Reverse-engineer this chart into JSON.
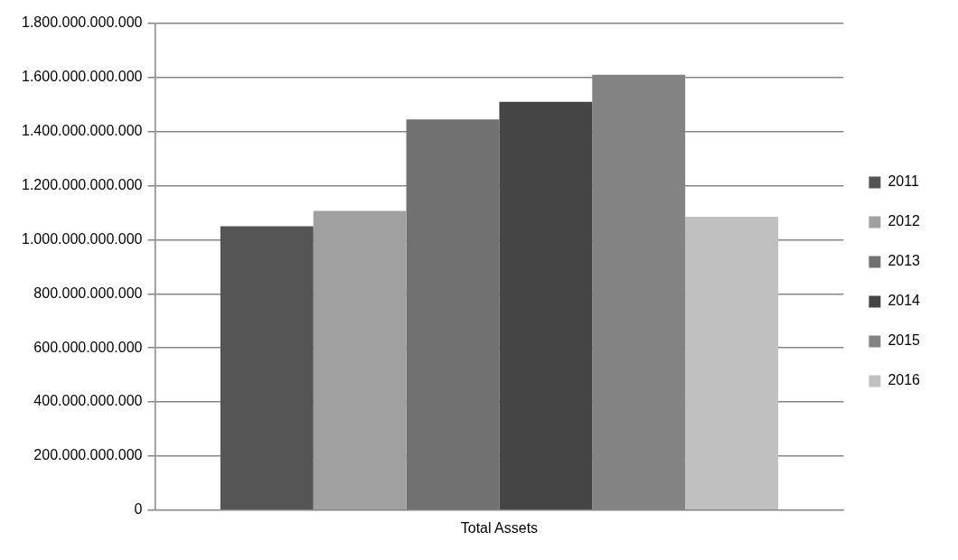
{
  "chart_data": {
    "type": "bar",
    "categories": [
      "Total Assets"
    ],
    "series": [
      {
        "name": "2011",
        "color": "#555555",
        "values": [
          1050000000000
        ]
      },
      {
        "name": "2012",
        "color": "#a0a0a0",
        "values": [
          1107000000000
        ]
      },
      {
        "name": "2013",
        "color": "#717171",
        "values": [
          1445000000000
        ]
      },
      {
        "name": "2014",
        "color": "#454545",
        "values": [
          1510000000000
        ]
      },
      {
        "name": "2015",
        "color": "#838383",
        "values": [
          1610000000000
        ]
      },
      {
        "name": "2016",
        "color": "#c0c0c0",
        "values": [
          1085000000000
        ]
      }
    ],
    "ylim": [
      0,
      1800000000000
    ],
    "yticks": [
      0,
      {
        "value": 200000000000,
        "label": "200.000.000.000"
      },
      {
        "value": 400000000000,
        "label": "400.000.000.000"
      },
      {
        "value": 600000000000,
        "label": "600.000.000.000"
      },
      {
        "value": 800000000000,
        "label": "800.000.000.000"
      },
      {
        "value": 1000000000000,
        "label": "1.000.000.000.000"
      },
      {
        "value": 1200000000000,
        "label": "1.200.000.000.000"
      },
      {
        "value": 1400000000000,
        "label": "1.400.000.000.000"
      },
      {
        "value": 1600000000000,
        "label": "1.600.000.000.000"
      },
      {
        "value": 1800000000000,
        "label": "1.800.000.000.000"
      }
    ],
    "grid": "y",
    "legend": "right"
  }
}
